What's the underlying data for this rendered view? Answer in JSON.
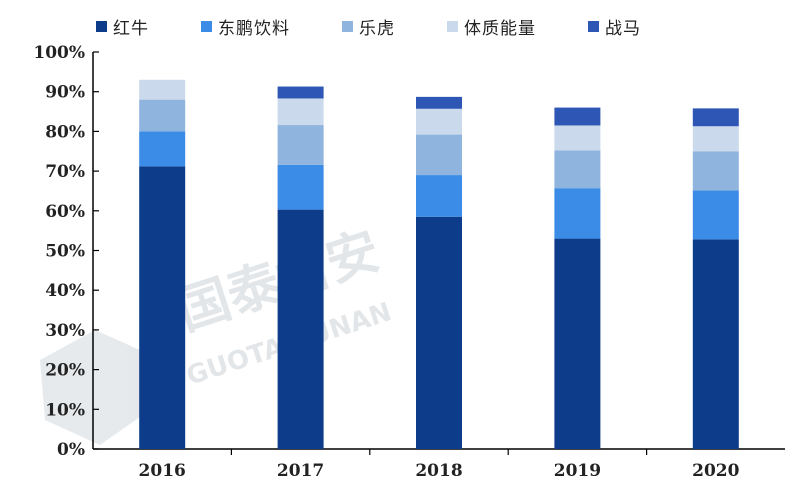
{
  "chart_data": {
    "type": "bar",
    "stacked": true,
    "categories": [
      "2016",
      "2017",
      "2018",
      "2019",
      "2020"
    ],
    "ylim": [
      0,
      100
    ],
    "yticks": [
      "0%",
      "10%",
      "20%",
      "30%",
      "40%",
      "50%",
      "60%",
      "70%",
      "80%",
      "90%",
      "100%"
    ],
    "grid": false,
    "legend_position": "top",
    "series": [
      {
        "name": "红牛",
        "color": "#0d3d8a",
        "values": [
          71.2,
          60.3,
          58.5,
          53.0,
          52.8
        ]
      },
      {
        "name": "东鹏饮料",
        "color": "#3a8ce6",
        "values": [
          8.8,
          11.3,
          10.5,
          12.7,
          12.3
        ]
      },
      {
        "name": "乐虎",
        "color": "#8fb4de",
        "values": [
          8.0,
          10.0,
          10.2,
          9.5,
          9.9
        ]
      },
      {
        "name": "体质能量",
        "color": "#cad9ec",
        "values": [
          5.0,
          6.7,
          6.5,
          6.3,
          6.3
        ]
      },
      {
        "name": "战马",
        "color": "#2e57b5",
        "values": [
          0,
          3.0,
          3.0,
          4.5,
          4.5
        ]
      }
    ]
  },
  "watermark": {
    "text_cn": "国泰君安",
    "text_en": "GUOTAI JUNAN"
  }
}
